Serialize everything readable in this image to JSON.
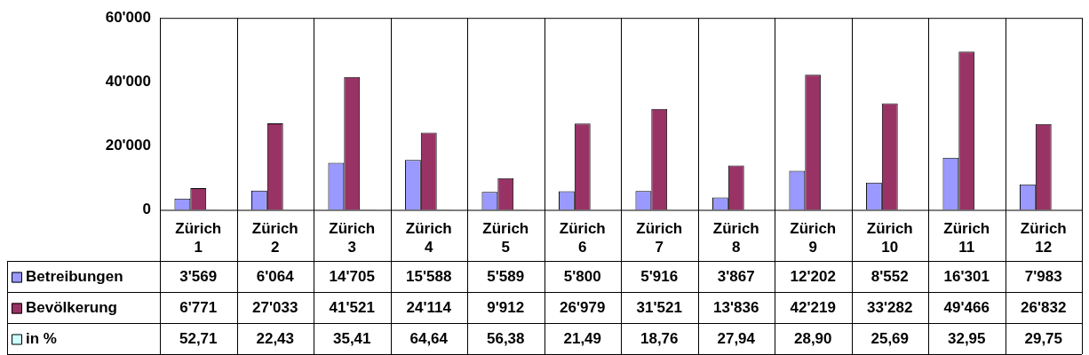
{
  "chart_data": {
    "type": "bar",
    "categories": [
      "Zürich 1",
      "Zürich 2",
      "Zürich 3",
      "Zürich 4",
      "Zürich 5",
      "Zürich 6",
      "Zürich 7",
      "Zürich 8",
      "Zürich 9",
      "Zürich 10",
      "Zürich 11",
      "Zürich 12"
    ],
    "series": [
      {
        "name": "Betreibungen",
        "color": "#9999ff",
        "values": [
          3569,
          6064,
          14705,
          15588,
          5589,
          5800,
          5916,
          3867,
          12202,
          8552,
          16301,
          7983
        ],
        "value_labels": [
          "3'569",
          "6'064",
          "14'705",
          "15'588",
          "5'589",
          "5'800",
          "5'916",
          "3'867",
          "12'202",
          "8'552",
          "16'301",
          "7'983"
        ]
      },
      {
        "name": "Bevölkerung",
        "color": "#993366",
        "values": [
          6771,
          27033,
          41521,
          24114,
          9912,
          26979,
          31521,
          13836,
          42219,
          33282,
          49466,
          26832
        ],
        "value_labels": [
          "6'771",
          "27'033",
          "41'521",
          "24'114",
          "9'912",
          "26'979",
          "31'521",
          "13'836",
          "42'219",
          "33'282",
          "49'466",
          "26'832"
        ]
      },
      {
        "name": "in %",
        "color": "#ccffff",
        "values": [
          52.71,
          22.43,
          35.41,
          64.64,
          56.38,
          21.49,
          18.76,
          27.94,
          28.9,
          25.69,
          32.95,
          29.75
        ],
        "value_labels": [
          "52,71",
          "22,43",
          "35,41",
          "64,64",
          "56,38",
          "21,49",
          "18,76",
          "27,94",
          "28,90",
          "25,69",
          "32,95",
          "29,75"
        ]
      }
    ],
    "ylim": [
      0,
      60000
    ],
    "yticks": [
      0,
      {
        "value": 20000,
        "label": "20'000"
      },
      {
        "value": 40000,
        "label": "40'000"
      },
      {
        "value": 60000,
        "label": "60'000"
      }
    ],
    "grid": "x",
    "legend": "bottom left"
  }
}
